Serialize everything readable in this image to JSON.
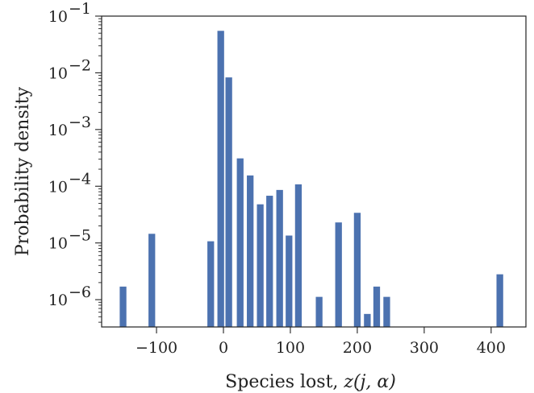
{
  "chart_data": {
    "type": "bar",
    "xlabel": "Species lost, ",
    "xlabel_math": "z(j, α)",
    "ylabel": "Probability density",
    "yscale": "log",
    "ylim": [
      3.3e-07,
      0.1
    ],
    "xlim": [
      -182,
      452
    ],
    "bar_width": 10,
    "bar_color": "#4c72b0",
    "x_ticks": [
      {
        "value": -100,
        "label": "−100"
      },
      {
        "value": 0,
        "label": "0"
      },
      {
        "value": 100,
        "label": "100"
      },
      {
        "value": 200,
        "label": "200"
      },
      {
        "value": 300,
        "label": "300"
      },
      {
        "value": 400,
        "label": "400"
      }
    ],
    "y_ticks": [
      {
        "value": 1e-06,
        "base": "10",
        "exp": "−6"
      },
      {
        "value": 1e-05,
        "base": "10",
        "exp": "−5"
      },
      {
        "value": 0.0001,
        "base": "10",
        "exp": "−4"
      },
      {
        "value": 0.001,
        "base": "10",
        "exp": "−3"
      },
      {
        "value": 0.01,
        "base": "10",
        "exp": "−2"
      },
      {
        "value": 0.1,
        "base": "10",
        "exp": "−1"
      }
    ],
    "bars": [
      {
        "x": -150,
        "y": 1.7e-06
      },
      {
        "x": -107,
        "y": 1.45e-05
      },
      {
        "x": -19,
        "y": 1.07e-05
      },
      {
        "x": -4,
        "y": 0.055
      },
      {
        "x": 8,
        "y": 0.0083
      },
      {
        "x": 25,
        "y": 0.00031
      },
      {
        "x": 40,
        "y": 0.000155
      },
      {
        "x": 55,
        "y": 4.8e-05
      },
      {
        "x": 69,
        "y": 6.8e-05
      },
      {
        "x": 84,
        "y": 8.6e-05
      },
      {
        "x": 98,
        "y": 1.35e-05
      },
      {
        "x": 112,
        "y": 0.000108
      },
      {
        "x": 143,
        "y": 1.12e-06
      },
      {
        "x": 172,
        "y": 2.3e-05
      },
      {
        "x": 200,
        "y": 3.4e-05
      },
      {
        "x": 215,
        "y": 5.6e-07
      },
      {
        "x": 229,
        "y": 1.7e-06
      },
      {
        "x": 244,
        "y": 1.12e-06
      },
      {
        "x": 413,
        "y": 2.8e-06
      }
    ]
  }
}
